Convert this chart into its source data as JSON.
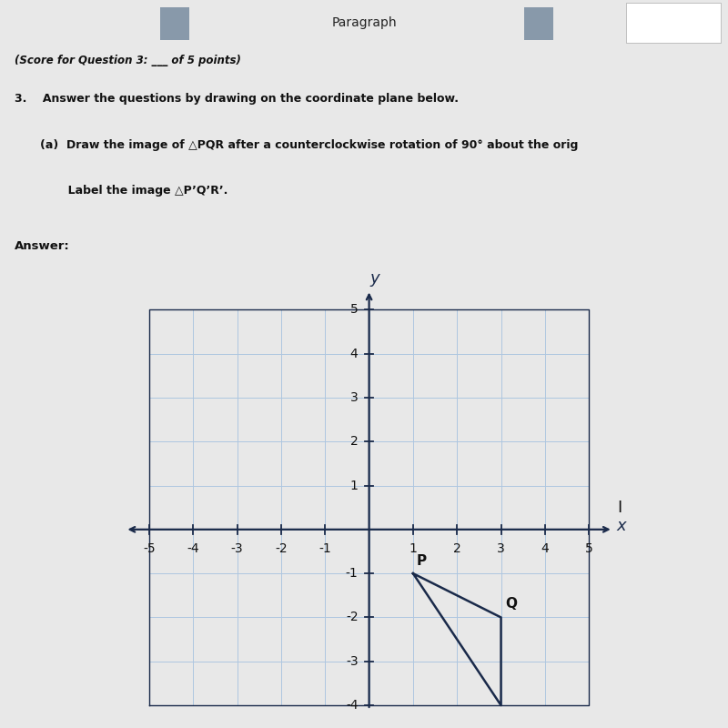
{
  "header_text": "Paragraph",
  "score_text": "(Score for Question 3: ___ of 5 points)",
  "q3_text": "3.    Answer the questions by drawing on the coordinate plane below.",
  "qa_text": "(a)  Draw the image of △PQR after a counterclockwise rotation of 90° about the orig",
  "label_text": "       Label the image △P’Q’R’.",
  "answer_text": "Answer:",
  "xmin": -5,
  "xmax": 5,
  "ymin": -4,
  "ymax": 5,
  "grid_color": "#aec6e0",
  "axis_color": "#1a2a4a",
  "bg_color": "#eeeade",
  "outer_bg": "#e8e8e8",
  "text_bg": "#f0ede4",
  "header_bg": "#c8d0dc",
  "triangle_P": [
    1,
    -1
  ],
  "triangle_Q": [
    3,
    -2
  ],
  "triangle_R": [
    3,
    -4
  ],
  "triangle_color": "#1a2a4a",
  "triangle_lw": 1.8,
  "label_fontsize": 11,
  "tick_fontsize": 10,
  "axis_label_fontsize": 13,
  "text_color": "#111111"
}
